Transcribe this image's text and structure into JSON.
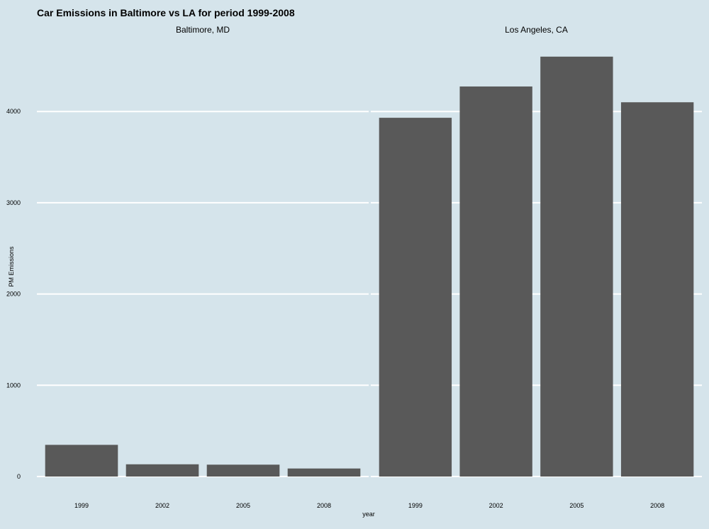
{
  "chart_data": {
    "type": "bar",
    "title": "Car Emissions in Baltimore vs LA for period  1999-2008",
    "xlabel": "year",
    "ylabel": "PM Emissions",
    "ylim": [
      0,
      4600
    ],
    "yticks": [
      0,
      1000,
      2000,
      3000,
      4000
    ],
    "grid": true,
    "categories": [
      "1999",
      "2002",
      "2005",
      "2008"
    ],
    "facets": [
      {
        "name": "Baltimore, MD",
        "values": [
          347,
          134,
          130,
          88
        ]
      },
      {
        "name": "Los Angeles, CA",
        "values": [
          3931,
          4274,
          4601,
          4101
        ]
      }
    ]
  },
  "colors": {
    "background": "#d5e4eb",
    "bar": "#595959",
    "grid": "#ffffff",
    "text": "#000000"
  }
}
